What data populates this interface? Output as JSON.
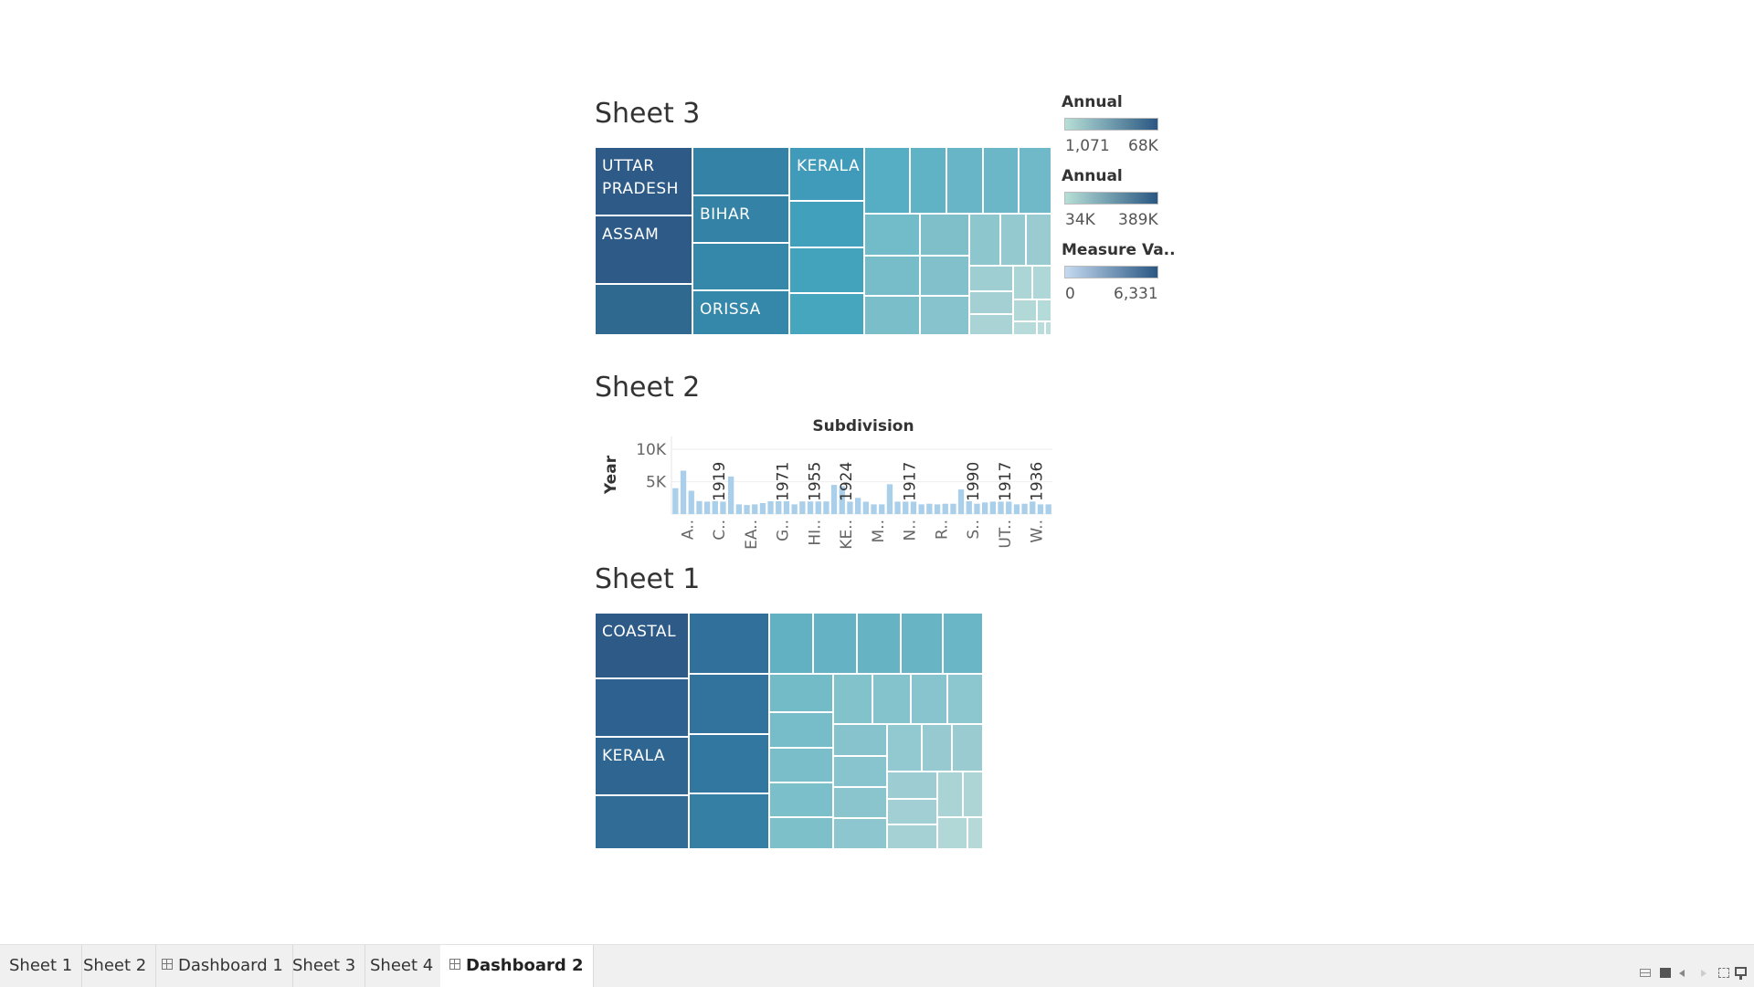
{
  "sheet3": {
    "title": "Sheet 3",
    "labels": {
      "uttar": "UTTAR PRADESH",
      "assam": "ASSAM",
      "bihar": "BIHAR",
      "orissa": "ORISSA",
      "kerala": "KERALA"
    }
  },
  "legends": [
    {
      "title": "Annual",
      "min": "1,071",
      "max": "68K",
      "color_from": "#b6dfd6",
      "color_to": "#2a5783"
    },
    {
      "title": "Annual",
      "min": "34K",
      "max": "389K",
      "color_from": "#b6dfd6",
      "color_to": "#2a5783"
    },
    {
      "title": "Measure Va..",
      "min": "0",
      "max": "6,331",
      "color_from": "#c5daf0",
      "color_to": "#2a5783"
    }
  ],
  "sheet2": {
    "title": "Sheet 2",
    "column_header": "Subdivision",
    "y_axis_label": "Year",
    "y_ticks": [
      "10K",
      "5K"
    ],
    "x_labels": [
      "A..",
      "C..",
      "EA..",
      "G..",
      "HI..",
      "KE..",
      "M..",
      "N..",
      "R..",
      "S..",
      "UT..",
      "W.."
    ],
    "bar_labels": [
      "1919",
      "1971",
      "1955",
      "1924",
      "1917",
      "1990",
      "1917",
      "1936"
    ],
    "bar_color": "#a9cfea"
  },
  "sheet1": {
    "title": "Sheet 1",
    "labels": {
      "coastal": "COASTAL",
      "kerala": "KERALA"
    }
  },
  "tabs": [
    {
      "label": "Sheet 1",
      "type": "sheet"
    },
    {
      "label": "Sheet 2",
      "type": "sheet"
    },
    {
      "label": "Dashboard 1",
      "type": "dashboard"
    },
    {
      "label": "Sheet 3",
      "type": "sheet"
    },
    {
      "label": "Sheet 4",
      "type": "sheet"
    },
    {
      "label": "Dashboard 2",
      "type": "dashboard",
      "active": true
    }
  ],
  "chart_data": [
    {
      "type": "bar",
      "title": "Sheet 2",
      "xlabel": "Subdivision",
      "ylabel": "Year",
      "ylim": [
        0,
        12000
      ],
      "categories": [
        "A..",
        "C..",
        "EA..",
        "G..",
        "HI..",
        "KE..",
        "M..",
        "N..",
        "R..",
        "S..",
        "UT..",
        "W.."
      ],
      "values": [
        [
          4000,
          6700,
          3600,
          2000
        ],
        [
          1919,
          2000,
          1919,
          5800
        ],
        [
          1500,
          1400,
          1500,
          1700
        ],
        [
          1971,
          1971,
          1971,
          1500
        ],
        [
          1955,
          1955,
          1955,
          1955
        ],
        [
          4500,
          4300,
          1924,
          2500
        ],
        [
          1900,
          1500,
          1500,
          4600
        ],
        [
          1917,
          1917,
          1917,
          1500
        ],
        [
          1600,
          1500,
          1600,
          1600
        ],
        [
          3800,
          1990,
          1600,
          1800
        ],
        [
          1917,
          1917,
          1917,
          1500
        ],
        [
          1600,
          1936,
          1500,
          1500
        ]
      ]
    }
  ]
}
